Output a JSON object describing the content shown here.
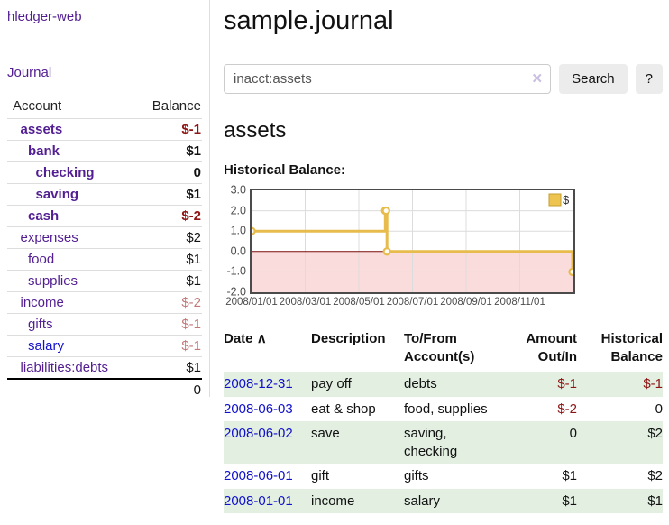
{
  "app": {
    "brand": "hledger-web"
  },
  "sidebar": {
    "nav_journal": "Journal",
    "accounts_header": {
      "account": "Account",
      "balance": "Balance"
    },
    "accounts": [
      {
        "name": "assets",
        "balance": "$-1",
        "indent": 1,
        "bold": true
      },
      {
        "name": "bank",
        "balance": "$1",
        "indent": 2,
        "bold": true
      },
      {
        "name": "checking",
        "balance": "0",
        "indent": 3,
        "bold": true
      },
      {
        "name": "saving",
        "balance": "$1",
        "indent": 3,
        "bold": true
      },
      {
        "name": "cash",
        "balance": "$-2",
        "indent": 2,
        "bold": true
      },
      {
        "name": "expenses",
        "balance": "$2",
        "indent": 1,
        "bold": false
      },
      {
        "name": "food",
        "balance": "$1",
        "indent": 2,
        "bold": false
      },
      {
        "name": "supplies",
        "balance": "$1",
        "indent": 2,
        "bold": false
      },
      {
        "name": "income",
        "balance": "$-2",
        "indent": 1,
        "bold": false
      },
      {
        "name": "gifts",
        "balance": "$-1",
        "indent": 2,
        "bold": false
      },
      {
        "name": "salary",
        "balance": "$-1",
        "indent": 2,
        "bold": false,
        "link_color": "blue"
      },
      {
        "name": "liabilities:debts",
        "balance": "$1",
        "indent": 1,
        "bold": false
      }
    ],
    "total": "0"
  },
  "header": {
    "title": "sample.journal"
  },
  "search": {
    "value": "inacct:assets",
    "clear_icon": "✕",
    "button": "Search",
    "help_button": "?"
  },
  "account_page": {
    "heading": "assets",
    "chart_label": "Historical Balance:"
  },
  "chart_data": {
    "type": "line",
    "step": true,
    "title": "Historical Balance:",
    "series": [
      {
        "name": "$",
        "color": "#e7bc4c",
        "points": [
          [
            "2008-01-01",
            1
          ],
          [
            "2008-06-01",
            2
          ],
          [
            "2008-06-02",
            2
          ],
          [
            "2008-06-03",
            0
          ],
          [
            "2008-12-31",
            -1
          ]
        ]
      }
    ],
    "xlim": [
      "2008-01-01",
      "2009-01-01"
    ],
    "ylim": [
      -2,
      3
    ],
    "x_ticks": [
      "2008/01/01",
      "2008/03/01",
      "2008/05/01",
      "2008/07/01",
      "2008/09/01",
      "2008/11/01"
    ],
    "y_ticks": [
      "3.0",
      "2.0",
      "1.0",
      "0.0",
      "-1.0",
      "-2.0"
    ],
    "grid": true,
    "negative_fill": "#fbdcdc",
    "zero_line_color": "#7d0b0b",
    "legend": {
      "label": "$",
      "position": "top-right",
      "swatch_color": "#ecc44f"
    }
  },
  "register": {
    "columns": {
      "date": "Date",
      "sort_icon": "∧",
      "description": "Description",
      "accounts": "To/From\nAccount(s)",
      "amount": "Amount\nOut/In",
      "balance": "Historical\nBalance"
    },
    "rows": [
      {
        "date": "2008-12-31",
        "description": "pay off",
        "accounts": "debts",
        "amount": "$-1",
        "balance": "$-1"
      },
      {
        "date": "2008-06-03",
        "description": "eat & shop",
        "accounts": "food, supplies",
        "amount": "$-2",
        "balance": "0"
      },
      {
        "date": "2008-06-02",
        "description": "save",
        "accounts": "saving, checking",
        "amount": "0",
        "balance": "$2"
      },
      {
        "date": "2008-06-01",
        "description": "gift",
        "accounts": "gifts",
        "amount": "$1",
        "balance": "$2"
      },
      {
        "date": "2008-01-01",
        "description": "income",
        "accounts": "salary",
        "amount": "$1",
        "balance": "$1"
      }
    ]
  },
  "colors": {
    "link_purple": "#521e92",
    "link_blue": "#1111cc",
    "negative_strong": "#8e1515",
    "negative_soft": "#c27878",
    "row_stripe_green": "#e2efe1",
    "chart_line_gold": "#e7bc4c",
    "chart_negative_pink": "#fbdcdc",
    "chart_zero_line": "#7d0b0b"
  }
}
